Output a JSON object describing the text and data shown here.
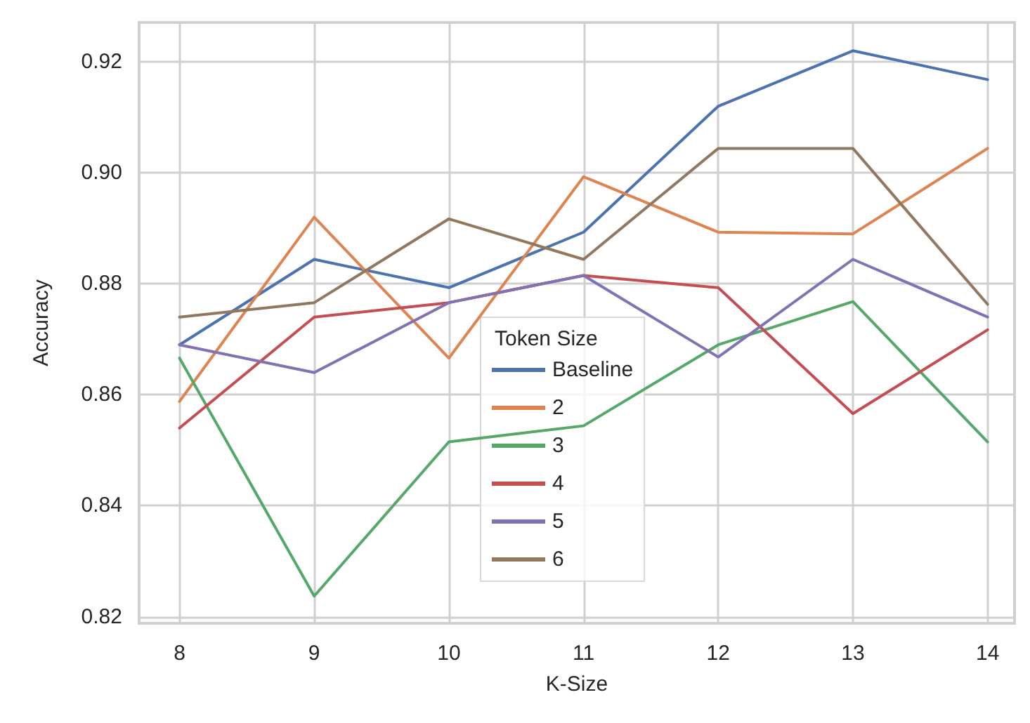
{
  "chart_data": {
    "type": "line",
    "xlabel": "K-Size",
    "ylabel": "Accuracy",
    "legend_title": "Token Size",
    "x": [
      8,
      9,
      10,
      11,
      12,
      13,
      14
    ],
    "xlim": [
      7.7,
      14.2
    ],
    "xticks": [
      8,
      9,
      10,
      11,
      12,
      13,
      14
    ],
    "ylim": [
      0.8188,
      0.9271
    ],
    "yticks": [
      0.82,
      0.84,
      0.86,
      0.88,
      {
        "value": 0.9,
        "label": "0.90"
      },
      0.92
    ],
    "grid": true,
    "legend": "bottom",
    "marker": "none",
    "line_style": "solid",
    "series": [
      {
        "name": "Baseline",
        "color": "#4c72b0",
        "values": [
          0.869,
          0.8844,
          0.8793,
          0.8893,
          0.912,
          0.922,
          0.9168
        ]
      },
      {
        "name": "2",
        "color": "#dd8452",
        "values": [
          0.8588,
          0.892,
          0.8666,
          0.8993,
          0.8893,
          0.889,
          0.9044
        ]
      },
      {
        "name": "3",
        "color": "#55a868",
        "values": [
          0.8666,
          0.8237,
          0.8515,
          0.8544,
          0.869,
          0.8768,
          0.8515
        ]
      },
      {
        "name": "4",
        "color": "#c44e52",
        "values": [
          0.854,
          0.874,
          0.8766,
          0.8815,
          0.8793,
          0.8566,
          0.8717
        ]
      },
      {
        "name": "5",
        "color": "#8172b3",
        "values": [
          0.869,
          0.864,
          0.8766,
          0.8815,
          0.8668,
          0.8844,
          0.874
        ]
      },
      {
        "name": "6",
        "color": "#937860",
        "values": [
          0.874,
          0.8766,
          0.8917,
          0.8844,
          0.9044,
          0.9044,
          0.8763
        ]
      }
    ]
  }
}
